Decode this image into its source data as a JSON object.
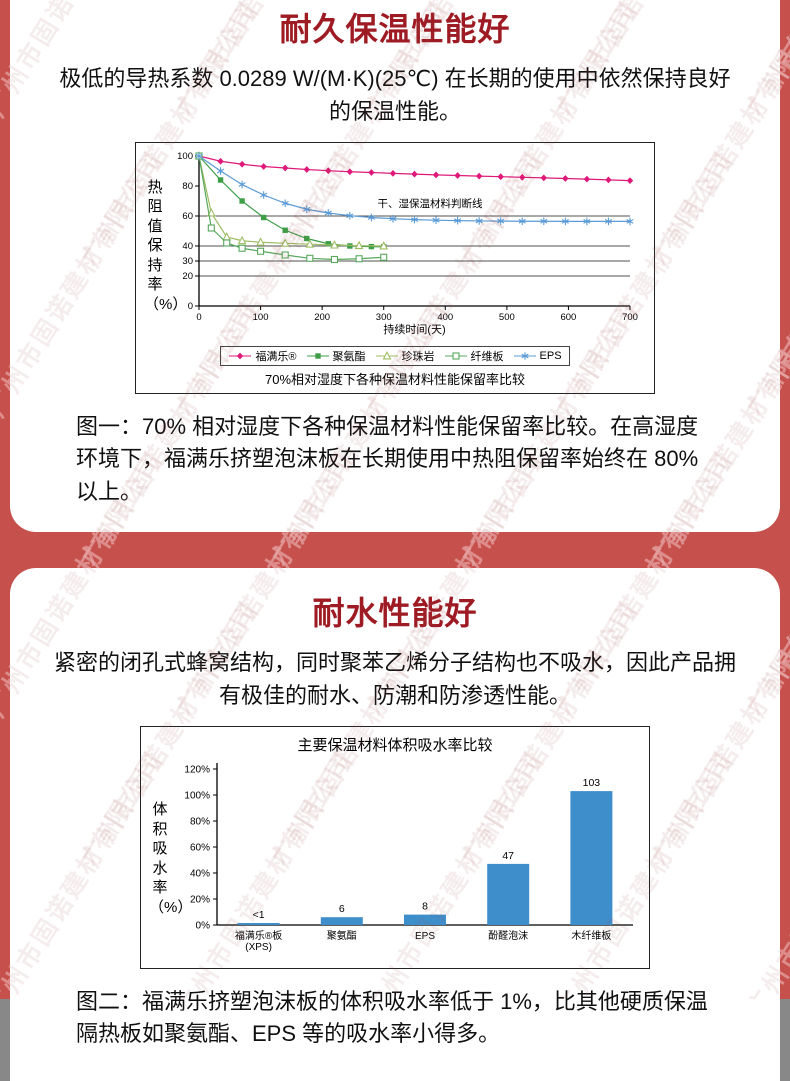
{
  "watermark": {
    "text": "广州市固诺建材有限公司"
  },
  "theme": {
    "page_bg": "#c6504c",
    "card_bg": "#ffffff",
    "title_color": "#9e1b24",
    "bar_color": "#3e8ecc"
  },
  "section1": {
    "title": "耐久保温性能好",
    "intro": "极低的导热系数 0.0289 W/(M·K)(25℃) 在长期的使用中依然保持良好的保温性能。",
    "caption": "图一：70% 相对湿度下各种保温材料性能保留率比较。在高湿度环境下，福满乐挤塑泡沫板在长期使用中热阻保留率始终在 80% 以上。"
  },
  "section2": {
    "title": "耐水性能好",
    "intro": "紧密的闭孔式蜂窝结构，同时聚苯乙烯分子结构也不吸水，因此产品拥有极佳的耐水、防潮和防渗透性能。",
    "caption": "图二：福满乐挤塑泡沫板的体积吸水率低于 1%，比其他硬质保温隔热板如聚氨酯、EPS 等的吸水率小得多。"
  },
  "chart_data": [
    {
      "type": "line",
      "title": "70%相对湿度下各种保温材料性能保留率比较",
      "ylabel": "热阻值保持率（%）",
      "xlabel": "持续时间(天)",
      "xlim": [
        0,
        700
      ],
      "ylim": [
        0,
        100
      ],
      "xticks": [
        0,
        100,
        200,
        300,
        400,
        500,
        600,
        700
      ],
      "yticks": [
        0,
        20,
        30,
        40,
        60,
        80,
        100
      ],
      "gridlines_y": [
        20,
        30,
        40,
        60
      ],
      "annotation": {
        "text": "干、湿保温材料判断线",
        "x": 290,
        "y": 66
      },
      "legend_position": "bottom",
      "series": [
        {
          "name": "福满乐®",
          "color": "#df1879",
          "marker": "diamond",
          "x": [
            0,
            35,
            70,
            105,
            140,
            175,
            210,
            245,
            280,
            315,
            350,
            385,
            420,
            455,
            490,
            525,
            560,
            595,
            630,
            665,
            700
          ],
          "y": [
            100,
            96.5,
            94.5,
            93,
            92,
            91,
            90.2,
            89.5,
            89,
            88.4,
            87.9,
            87.4,
            87,
            86.6,
            86.2,
            85.8,
            85.4,
            85,
            84.6,
            84.1,
            83.6
          ]
        },
        {
          "name": "聚氨酯",
          "color": "#3e9e47",
          "marker": "square",
          "x": [
            0,
            35,
            70,
            105,
            140,
            175,
            210,
            245,
            280,
            300
          ],
          "y": [
            100,
            84,
            70,
            59,
            50.5,
            45,
            41.5,
            40,
            39.6,
            39.5
          ]
        },
        {
          "name": "珍珠岩",
          "color": "#9dbd62",
          "marker": "triangle-open",
          "x": [
            0,
            20,
            45,
            70,
            100,
            140,
            180,
            220,
            260,
            300
          ],
          "y": [
            100,
            62,
            46,
            43.5,
            42.5,
            41.8,
            41.2,
            40.6,
            40.2,
            40
          ]
        },
        {
          "name": "纤维板",
          "color": "#57a85c",
          "marker": "square-open",
          "x": [
            0,
            20,
            45,
            70,
            100,
            140,
            180,
            220,
            260,
            300
          ],
          "y": [
            100,
            52,
            42,
            38.5,
            36.5,
            34,
            31.8,
            31,
            31.5,
            32.5
          ]
        },
        {
          "name": "EPS",
          "color": "#5b9bd5",
          "marker": "asterisk",
          "x": [
            0,
            35,
            70,
            105,
            140,
            175,
            210,
            245,
            280,
            315,
            350,
            385,
            420,
            455,
            490,
            525,
            560,
            595,
            630,
            665,
            700
          ],
          "y": [
            100,
            90,
            81,
            74,
            68.5,
            64.5,
            62,
            60.2,
            59,
            58.2,
            57.6,
            57.2,
            56.9,
            56.7,
            56.6,
            56.5,
            56.5,
            56.4,
            56.4,
            56.4,
            56.4
          ]
        }
      ]
    },
    {
      "type": "bar",
      "title": "主要保温材料体积吸水率比较",
      "ylabel": "体积吸水率（%）",
      "categories": [
        "福满乐®板\n(XPS)",
        "聚氨酯",
        "EPS",
        "酚醛泡沫",
        "木纤维板"
      ],
      "values": [
        1,
        6,
        8,
        47,
        103
      ],
      "value_labels": [
        "<1",
        "6",
        "8",
        "47",
        "103"
      ],
      "yticks": [
        "0%",
        "20%",
        "40%",
        "60%",
        "80%",
        "100%",
        "120%"
      ],
      "ytick_values": [
        0,
        20,
        40,
        60,
        80,
        100,
        120
      ],
      "ylim": [
        0,
        120
      ],
      "bar_color": "#3e8ecc",
      "grid": false
    }
  ]
}
